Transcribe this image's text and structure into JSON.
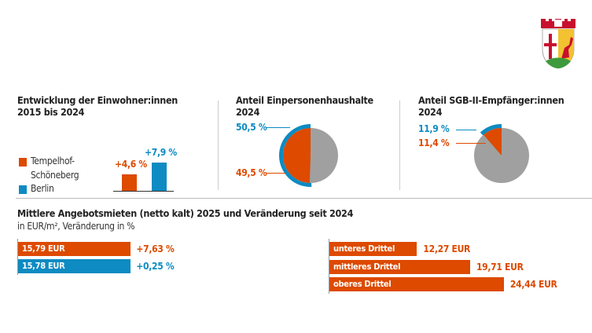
{
  "colors": {
    "orange": "#dd4a00",
    "blue": "#0d8bc2",
    "gray": "#a0a0a0"
  },
  "chart_data": [
    {
      "type": "bar",
      "title": "Entwicklung der Einwohner:innen",
      "title2": "2015 bis 2024",
      "legend": [
        "Tempelhof-",
        "Schöneberg",
        "Berlin"
      ],
      "categories": [
        "Tempelhof-Schöneberg",
        "Berlin"
      ],
      "values": [
        4.6,
        7.9
      ],
      "labels": [
        "+4,6 %",
        "+7,9 %"
      ]
    },
    {
      "type": "pie",
      "title": "Anteil Einpersonenhaushalte",
      "title2": "2024",
      "values": {
        "Tempelhof-Schöneberg": 49.5,
        "Berlin": 50.5
      },
      "labels": {
        "berlin": "50,5 %",
        "ts": "49,5 %"
      }
    },
    {
      "type": "pie",
      "title": "Anteil SGB-II-Empfänger:innen",
      "title2": "2024",
      "values": {
        "Tempelhof-Schöneberg": 11.4,
        "Berlin": 11.9
      },
      "labels": {
        "berlin": "11,9 %",
        "ts": "11,4 %"
      }
    },
    {
      "type": "bar",
      "orientation": "horizontal",
      "title": "Mittlere Angebotsmieten (netto kalt) 2025 und Veränderung seit 2024",
      "subtitle": "in EUR/m², Veränderung in %",
      "series": [
        {
          "name": "Tempelhof-Schöneberg",
          "value": 15.79,
          "label": "15,79 EUR",
          "change": "+7,63 %"
        },
        {
          "name": "Berlin",
          "value": 15.78,
          "label": "15,78 EUR",
          "change": "+0,25 %"
        }
      ]
    },
    {
      "type": "bar",
      "orientation": "horizontal",
      "categories": [
        "unteres Drittel",
        "mittleres Drittel",
        "oberes Drittel"
      ],
      "values": [
        12.27,
        19.71,
        24.44
      ],
      "labels": [
        "12,27 EUR",
        "19,71 EUR",
        "24,44 EUR"
      ]
    }
  ]
}
